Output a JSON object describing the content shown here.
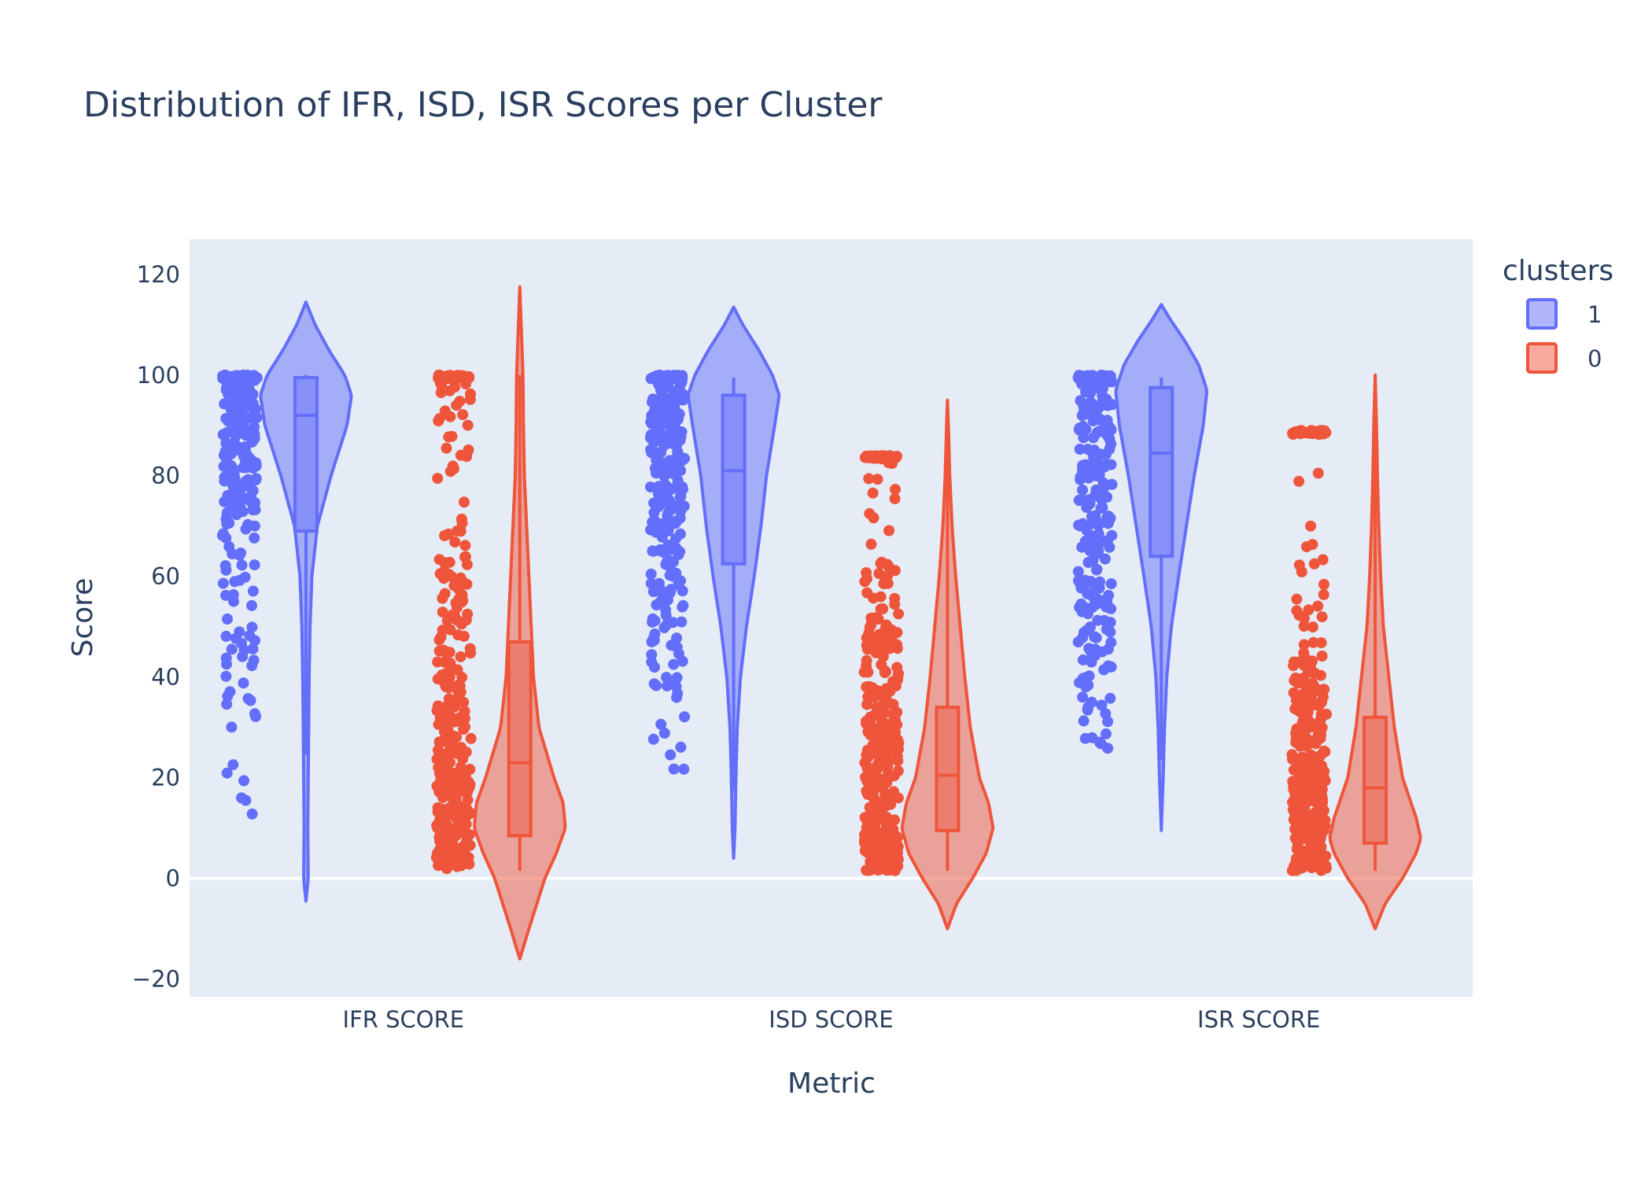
{
  "chart_data": {
    "type": "violin",
    "title": "Distribution of IFR, ISD, ISR Scores per Cluster",
    "xlabel": "Metric",
    "ylabel": "Score",
    "categories": [
      "IFR SCORE",
      "ISD SCORE",
      "ISR SCORE"
    ],
    "ylim": [
      -23.5,
      127
    ],
    "yticks": [
      -20,
      0,
      20,
      40,
      60,
      80,
      100,
      120
    ],
    "ytick_labels": [
      "−20",
      "0",
      "20",
      "40",
      "60",
      "80",
      "100",
      "120"
    ],
    "grid": false,
    "points": "all",
    "legend": {
      "title": "clusters",
      "position": "top-right",
      "entries": [
        "1",
        "0"
      ]
    },
    "series": [
      {
        "name": "1",
        "color": "#636efa",
        "groups": [
          {
            "category": "IFR SCORE",
            "box": {
              "q1": 69,
              "median": 92,
              "q3": 99.5,
              "lowerfence": 24.5,
              "upperfence": 100
            },
            "violin_range": [
              -4.5,
              114.5
            ],
            "density": [
              [
                -4.5,
                0
              ],
              [
                0,
                0.05
              ],
              [
                10,
                0.04
              ],
              [
                20,
                0.05
              ],
              [
                30,
                0.06
              ],
              [
                40,
                0.07
              ],
              [
                50,
                0.09
              ],
              [
                60,
                0.13
              ],
              [
                70,
                0.25
              ],
              [
                80,
                0.55
              ],
              [
                90,
                0.9
              ],
              [
                96,
                1
              ],
              [
                100,
                0.85
              ],
              [
                105,
                0.5
              ],
              [
                110,
                0.2
              ],
              [
                114.5,
                0
              ]
            ],
            "points": {
              "min": 11,
              "max": 100,
              "n": 250,
              "seed": 11,
              "weights": [
                [
                  10,
                  0.15
                ],
                [
                  20,
                  0.25
                ],
                [
                  30,
                  0.3
                ],
                [
                  40,
                  0.35
                ],
                [
                  50,
                  0.35
                ],
                [
                  60,
                  0.5
                ],
                [
                  70,
                  0.9
                ],
                [
                  80,
                  1.4
                ],
                [
                  90,
                  1.8
                ],
                [
                  100,
                  2.4
                ]
              ]
            }
          },
          {
            "category": "ISD SCORE",
            "box": {
              "q1": 62.5,
              "median": 81,
              "q3": 96,
              "lowerfence": 17.5,
              "upperfence": 99.5
            },
            "violin_range": [
              4,
              113.5
            ],
            "density": [
              [
                4,
                0
              ],
              [
                10,
                0.03
              ],
              [
                20,
                0.05
              ],
              [
                30,
                0.08
              ],
              [
                40,
                0.15
              ],
              [
                50,
                0.28
              ],
              [
                60,
                0.45
              ],
              [
                70,
                0.6
              ],
              [
                80,
                0.72
              ],
              [
                90,
                0.9
              ],
              [
                96,
                1
              ],
              [
                100,
                0.85
              ],
              [
                105,
                0.55
              ],
              [
                110,
                0.2
              ],
              [
                113.5,
                0
              ]
            ],
            "points": {
              "min": 17.5,
              "max": 100,
              "n": 280,
              "seed": 23,
              "weights": [
                [
                  17,
                  0.1
                ],
                [
                  30,
                  0.2
                ],
                [
                  40,
                  0.45
                ],
                [
                  50,
                  0.8
                ],
                [
                  60,
                  1.1
                ],
                [
                  70,
                  1.1
                ],
                [
                  80,
                  1.2
                ],
                [
                  90,
                  1.4
                ],
                [
                  100,
                  1.8
                ]
              ]
            }
          },
          {
            "category": "ISR SCORE",
            "box": {
              "q1": 64,
              "median": 84.5,
              "q3": 97.5,
              "lowerfence": 23.5,
              "upperfence": 99.5
            },
            "violin_range": [
              9.5,
              114
            ],
            "density": [
              [
                9.5,
                0
              ],
              [
                20,
                0.04
              ],
              [
                30,
                0.07
              ],
              [
                40,
                0.12
              ],
              [
                50,
                0.22
              ],
              [
                60,
                0.38
              ],
              [
                70,
                0.55
              ],
              [
                80,
                0.72
              ],
              [
                90,
                0.92
              ],
              [
                97,
                1
              ],
              [
                102,
                0.82
              ],
              [
                107,
                0.5
              ],
              [
                111,
                0.2
              ],
              [
                114,
                0
              ]
            ],
            "points": {
              "min": 23.5,
              "max": 100,
              "n": 260,
              "seed": 37,
              "weights": [
                [
                  23,
                  0.15
                ],
                [
                  30,
                  0.25
                ],
                [
                  40,
                  0.6
                ],
                [
                  50,
                  0.9
                ],
                [
                  60,
                  1.1
                ],
                [
                  70,
                  1.2
                ],
                [
                  80,
                  1.3
                ],
                [
                  90,
                  1.5
                ],
                [
                  100,
                  1.9
                ]
              ]
            }
          }
        ]
      },
      {
        "name": "0",
        "color": "#ef553b",
        "groups": [
          {
            "category": "IFR SCORE",
            "box": {
              "q1": 8.5,
              "median": 23,
              "q3": 47,
              "lowerfence": 1.5,
              "upperfence": 100
            },
            "violin_range": [
              -16,
              117.5
            ],
            "density": [
              [
                -16,
                0
              ],
              [
                -10,
                0.2
              ],
              [
                0,
                0.55
              ],
              [
                5,
                0.8
              ],
              [
                10,
                1
              ],
              [
                15,
                0.95
              ],
              [
                20,
                0.75
              ],
              [
                30,
                0.42
              ],
              [
                40,
                0.3
              ],
              [
                50,
                0.25
              ],
              [
                60,
                0.2
              ],
              [
                70,
                0.15
              ],
              [
                80,
                0.1
              ],
              [
                90,
                0.08
              ],
              [
                100,
                0.07
              ],
              [
                110,
                0.03
              ],
              [
                117.5,
                0
              ]
            ],
            "points": {
              "min": 1.5,
              "max": 100,
              "n": 330,
              "seed": 53,
              "weights": [
                [
                  1,
                  2.2
                ],
                [
                  10,
                  2.0
                ],
                [
                  20,
                  1.6
                ],
                [
                  30,
                  1.2
                ],
                [
                  40,
                  0.9
                ],
                [
                  50,
                  0.8
                ],
                [
                  60,
                  0.6
                ],
                [
                  70,
                  0.45
                ],
                [
                  80,
                  0.4
                ],
                [
                  90,
                  0.35
                ],
                [
                  100,
                  0.45
                ]
              ]
            }
          },
          {
            "category": "ISD SCORE",
            "box": {
              "q1": 9.5,
              "median": 20.5,
              "q3": 34,
              "lowerfence": 1.5,
              "upperfence": 95
            },
            "violin_range": [
              -10,
              95
            ],
            "density": [
              [
                -10,
                0
              ],
              [
                -5,
                0.2
              ],
              [
                0,
                0.55
              ],
              [
                5,
                0.85
              ],
              [
                10,
                1
              ],
              [
                15,
                0.9
              ],
              [
                20,
                0.7
              ],
              [
                30,
                0.5
              ],
              [
                40,
                0.38
              ],
              [
                50,
                0.28
              ],
              [
                60,
                0.18
              ],
              [
                70,
                0.1
              ],
              [
                80,
                0.05
              ],
              [
                90,
                0.02
              ],
              [
                95,
                0
              ]
            ],
            "points": {
              "min": 1.5,
              "max": 84,
              "n": 340,
              "seed": 71,
              "weights": [
                [
                  1,
                  2.4
                ],
                [
                  10,
                  2.2
                ],
                [
                  20,
                  1.8
                ],
                [
                  30,
                  1.4
                ],
                [
                  40,
                  1.0
                ],
                [
                  50,
                  0.5
                ],
                [
                  60,
                  0.3
                ],
                [
                  70,
                  0.12
                ],
                [
                  84,
                  0.05
                ]
              ]
            }
          },
          {
            "category": "ISR SCORE",
            "box": {
              "q1": 7,
              "median": 18,
              "q3": 32,
              "lowerfence": 1.5,
              "upperfence": 100
            },
            "violin_range": [
              -10,
              100
            ],
            "density": [
              [
                -10,
                0
              ],
              [
                -5,
                0.22
              ],
              [
                0,
                0.6
              ],
              [
                5,
                0.9
              ],
              [
                8,
                1
              ],
              [
                12,
                0.9
              ],
              [
                20,
                0.6
              ],
              [
                30,
                0.42
              ],
              [
                40,
                0.3
              ],
              [
                50,
                0.18
              ],
              [
                60,
                0.12
              ],
              [
                70,
                0.08
              ],
              [
                80,
                0.05
              ],
              [
                90,
                0.03
              ],
              [
                100,
                0
              ]
            ],
            "points": {
              "min": 1.5,
              "max": 89,
              "n": 330,
              "seed": 89,
              "weights": [
                [
                  1,
                  2.6
                ],
                [
                  10,
                  2.2
                ],
                [
                  20,
                  1.8
                ],
                [
                  30,
                  1.4
                ],
                [
                  40,
                  1.0
                ],
                [
                  50,
                  0.45
                ],
                [
                  60,
                  0.22
                ],
                [
                  70,
                  0.1
                ],
                [
                  89,
                  0.04
                ]
              ]
            }
          }
        ]
      }
    ]
  }
}
